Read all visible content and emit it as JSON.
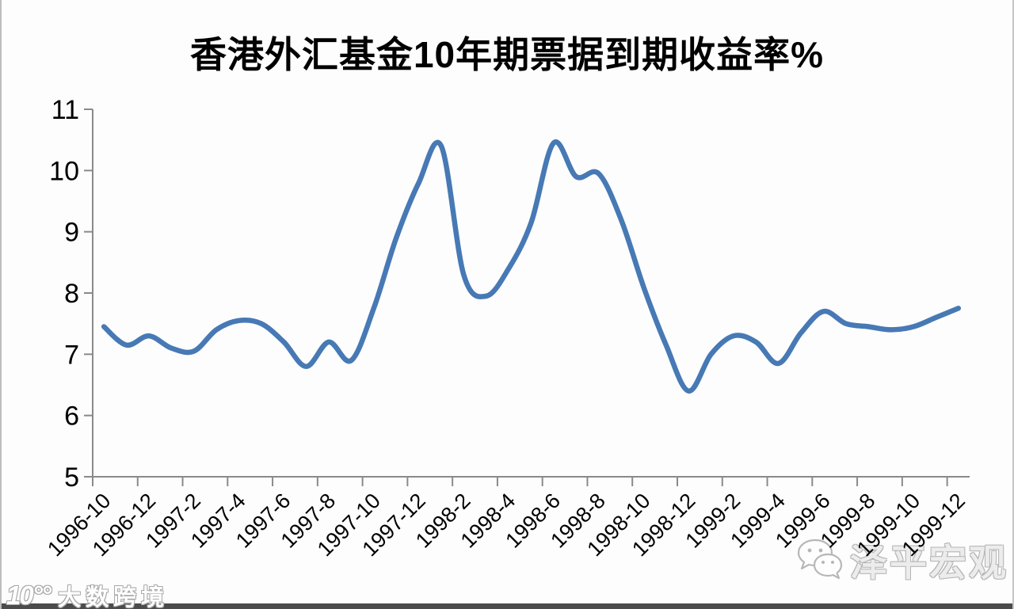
{
  "page": {
    "background": "#fdfdfd",
    "bottom_bar_color": "#4b4b4b",
    "side_border_color": "#bcbcbc"
  },
  "chart_data": {
    "type": "line",
    "title": "香港外汇基金10年期票据到期收益率%",
    "x": [
      "1996-10",
      "1996-11",
      "1996-12",
      "1997-1",
      "1997-2",
      "1997-3",
      "1997-4",
      "1997-5",
      "1997-6",
      "1997-7",
      "1997-8",
      "1997-9",
      "1997-10",
      "1997-11",
      "1997-12",
      "1998-1",
      "1998-2",
      "1998-3",
      "1998-4",
      "1998-5",
      "1998-6",
      "1998-7",
      "1998-8",
      "1998-9",
      "1998-10",
      "1998-11",
      "1998-12",
      "1999-1",
      "1999-2",
      "1999-3",
      "1999-4",
      "1999-5",
      "1999-6",
      "1999-7",
      "1999-8",
      "1999-9",
      "1999-10",
      "1999-11",
      "1999-12"
    ],
    "values": [
      7.45,
      7.15,
      7.3,
      7.1,
      7.05,
      7.4,
      7.55,
      7.5,
      7.2,
      6.8,
      7.2,
      6.9,
      7.75,
      8.9,
      9.8,
      10.4,
      8.3,
      7.95,
      8.4,
      9.15,
      10.45,
      9.9,
      9.95,
      9.2,
      8.1,
      7.15,
      6.4,
      7.0,
      7.3,
      7.2,
      6.85,
      7.35,
      7.7,
      7.5,
      7.45,
      7.4,
      7.45,
      7.6,
      7.75
    ],
    "x_tick_labels": [
      "1996-10",
      "1996-12",
      "1997-2",
      "1997-4",
      "1997-6",
      "1997-8",
      "1997-10",
      "1997-12",
      "1998-2",
      "1998-4",
      "1998-6",
      "1998-8",
      "1998-10",
      "1998-12",
      "1999-2",
      "1999-4",
      "1999-6",
      "1999-8",
      "1999-10",
      "1999-12"
    ],
    "y_ticks": [
      5,
      6,
      7,
      8,
      9,
      10,
      11
    ],
    "ylim": [
      5,
      11
    ],
    "xlabel": "",
    "ylabel": "",
    "grid": false,
    "legend_position": "none",
    "line_color": "#4779b5",
    "axis_color": "#8a8a8a",
    "tick_label_color": "#000000"
  },
  "watermarks": {
    "bottom_left": {
      "logo": "10°°",
      "text": "大数跨境"
    },
    "bottom_right": {
      "icon": "wechat-icon",
      "text": "泽平宏观"
    }
  }
}
